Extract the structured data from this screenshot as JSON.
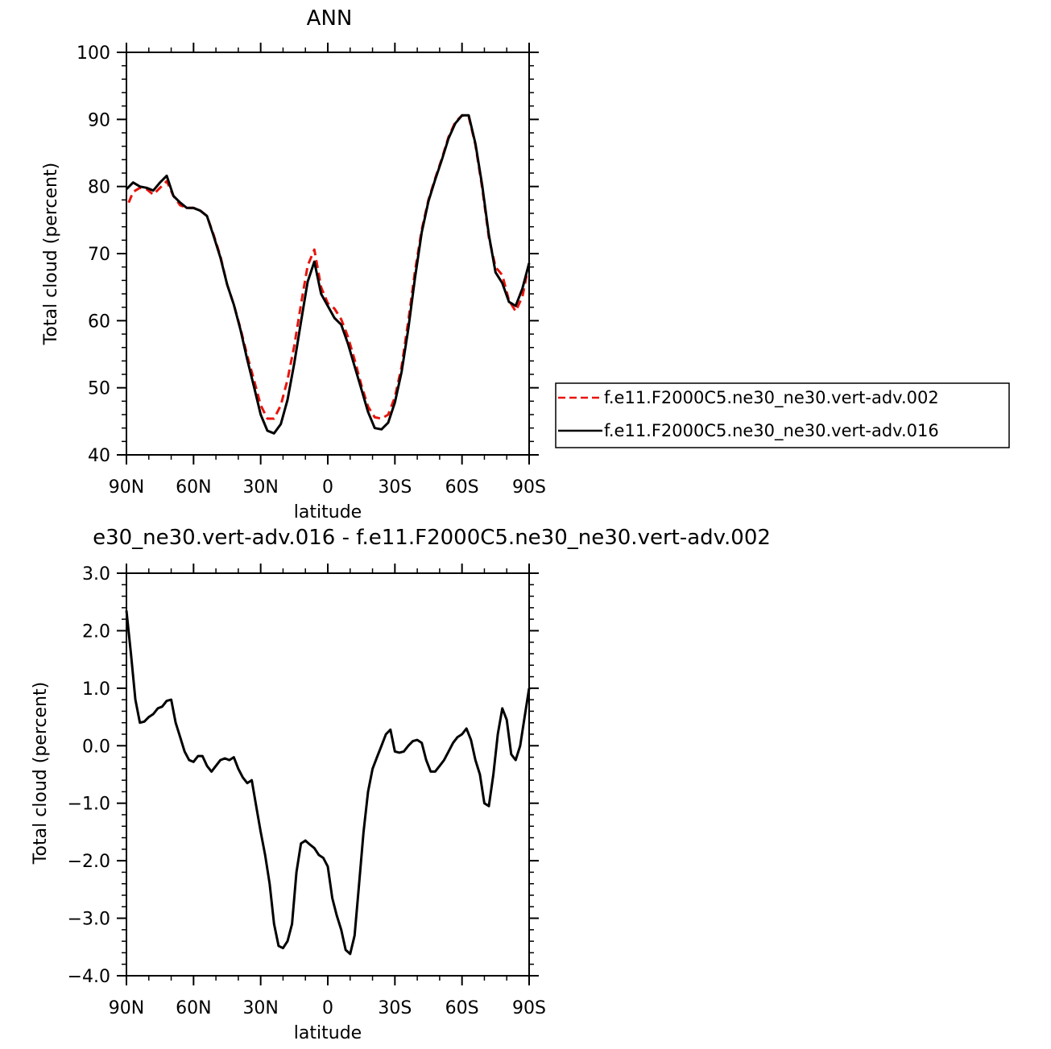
{
  "chart_data": [
    {
      "type": "line",
      "title": "ANN",
      "xlabel": "latitude",
      "ylabel": "Total cloud (percent)",
      "xlim": [
        90,
        -90
      ],
      "ylim": [
        40,
        100
      ],
      "x_ticks": [
        90,
        60,
        30,
        0,
        -30,
        -60,
        -90
      ],
      "x_tick_labels": [
        "90N",
        "60N",
        "30N",
        "0",
        "30S",
        "60S",
        "90S"
      ],
      "y_ticks": [
        40,
        50,
        60,
        70,
        80,
        90,
        100
      ],
      "y_tick_labels": [
        "40",
        "50",
        "60",
        "70",
        "80",
        "90",
        "100"
      ],
      "legend": "right",
      "series": [
        {
          "name": "f.e11.F2000C5.ne30_ne30.vert-adv.002",
          "color": "#e8140c",
          "dash": "dashed",
          "x": [
            89,
            87,
            84,
            81,
            78,
            75,
            72,
            69,
            66,
            63,
            60,
            57,
            54,
            51,
            48,
            45,
            42,
            39,
            36,
            33,
            30,
            27,
            24,
            21,
            18,
            15,
            12,
            9,
            6,
            3,
            0,
            -3,
            -6,
            -9,
            -12,
            -15,
            -18,
            -21,
            -24,
            -27,
            -30,
            -33,
            -36,
            -39,
            -42,
            -45,
            -48,
            -51,
            -54,
            -57,
            -60,
            -63,
            -66,
            -69,
            -72,
            -75,
            -78,
            -81,
            -84,
            -87,
            -90
          ],
          "y": [
            77.6,
            79.2,
            79.8,
            79.6,
            78.8,
            79.8,
            80.8,
            78.6,
            77.2,
            76.8,
            76.8,
            76.4,
            75.6,
            72.8,
            69.6,
            65.4,
            62.4,
            58.8,
            54.8,
            51.2,
            47.4,
            45.4,
            45.4,
            47.4,
            51.2,
            56.2,
            62.4,
            68.2,
            70.6,
            65.0,
            62.6,
            61.8,
            60.2,
            57.6,
            54.2,
            50.4,
            47.2,
            45.6,
            45.4,
            46.0,
            48.6,
            53.2,
            60.0,
            67.4,
            73.6,
            78.0,
            81.2,
            84.2,
            87.4,
            89.6,
            90.6,
            90.4,
            86.2,
            79.8,
            72.4,
            68.0,
            66.8,
            63.0,
            61.4,
            63.6,
            68.6
          ]
        },
        {
          "name": "f.e11.F2000C5.ne30_ne30.vert-adv.016",
          "color": "#000000",
          "dash": "solid",
          "x": [
            90,
            87,
            84,
            81,
            78,
            75,
            72,
            69,
            66,
            63,
            60,
            57,
            54,
            51,
            48,
            45,
            42,
            39,
            36,
            33,
            30,
            27,
            24,
            21,
            18,
            15,
            12,
            9,
            6,
            3,
            0,
            -3,
            -6,
            -9,
            -12,
            -15,
            -18,
            -21,
            -24,
            -27,
            -30,
            -33,
            -36,
            -39,
            -42,
            -45,
            -48,
            -51,
            -54,
            -57,
            -60,
            -63,
            -66,
            -69,
            -72,
            -75,
            -78,
            -81,
            -84,
            -87,
            -90
          ],
          "y": [
            79.6,
            80.6,
            80.0,
            79.8,
            79.4,
            80.6,
            81.6,
            78.6,
            77.6,
            76.8,
            76.8,
            76.4,
            75.6,
            72.6,
            69.4,
            65.4,
            62.4,
            58.6,
            54.2,
            50.2,
            46.0,
            43.6,
            43.2,
            44.6,
            48.2,
            53.6,
            59.8,
            65.8,
            68.8,
            64.0,
            62.2,
            60.4,
            59.4,
            56.6,
            53.2,
            49.8,
            46.4,
            44.0,
            43.8,
            44.8,
            47.8,
            52.4,
            58.8,
            66.4,
            73.2,
            77.8,
            81.0,
            84.0,
            87.2,
            89.4,
            90.6,
            90.6,
            86.4,
            80.2,
            72.8,
            67.2,
            65.6,
            62.8,
            62.2,
            64.8,
            68.6
          ]
        }
      ]
    },
    {
      "type": "line",
      "title": "e30_ne30.vert-adv.016 - f.e11.F2000C5.ne30_ne30.vert-adv.002",
      "xlabel": "latitude",
      "ylabel": "Total cloud (percent)",
      "xlim": [
        90,
        -90
      ],
      "ylim": [
        -4.0,
        3.0
      ],
      "x_ticks": [
        90,
        60,
        30,
        0,
        -30,
        -60,
        -90
      ],
      "x_tick_labels": [
        "90N",
        "60N",
        "30N",
        "0",
        "30S",
        "60S",
        "90S"
      ],
      "y_ticks": [
        -4.0,
        -3.0,
        -2.0,
        -1.0,
        0.0,
        1.0,
        2.0,
        3.0
      ],
      "y_tick_labels": [
        "−4.0",
        "−3.0",
        "−2.0",
        "−1.0",
        "0.0",
        "1.0",
        "2.0",
        "3.0"
      ],
      "series": [
        {
          "color": "#000000",
          "dash": "solid",
          "x": [
            90,
            88,
            86,
            84,
            82,
            80,
            78,
            76,
            74,
            72,
            70,
            68,
            66,
            64,
            62,
            60,
            58,
            56,
            54,
            52,
            50,
            48,
            46,
            44,
            42,
            40,
            38,
            36,
            34,
            32,
            30,
            28,
            26,
            24,
            22,
            20,
            18,
            16,
            14,
            12,
            10,
            8,
            6,
            4,
            2,
            0,
            -2,
            -4,
            -6,
            -8,
            -10,
            -12,
            -14,
            -16,
            -18,
            -20,
            -22,
            -24,
            -26,
            -28,
            -30,
            -32,
            -34,
            -36,
            -38,
            -40,
            -42,
            -44,
            -46,
            -48,
            -50,
            -52,
            -54,
            -56,
            -58,
            -60,
            -62,
            -64,
            -66,
            -68,
            -70,
            -72,
            -74,
            -76,
            -78,
            -80,
            -82,
            -84,
            -86,
            -88,
            -90
          ],
          "y": [
            2.35,
            1.6,
            0.8,
            0.4,
            0.42,
            0.5,
            0.55,
            0.65,
            0.68,
            0.78,
            0.8,
            0.4,
            0.15,
            -0.1,
            -0.25,
            -0.28,
            -0.18,
            -0.18,
            -0.35,
            -0.45,
            -0.35,
            -0.25,
            -0.22,
            -0.25,
            -0.2,
            -0.4,
            -0.55,
            -0.65,
            -0.6,
            -1.05,
            -1.5,
            -1.9,
            -2.4,
            -3.1,
            -3.48,
            -3.52,
            -3.4,
            -3.1,
            -2.2,
            -1.7,
            -1.65,
            -1.72,
            -1.78,
            -1.9,
            -1.95,
            -2.1,
            -2.65,
            -2.95,
            -3.2,
            -3.55,
            -3.62,
            -3.3,
            -2.4,
            -1.5,
            -0.8,
            -0.4,
            -0.2,
            0.0,
            0.2,
            0.28,
            -0.1,
            -0.12,
            -0.1,
            0.0,
            0.08,
            0.1,
            0.05,
            -0.25,
            -0.45,
            -0.45,
            -0.35,
            -0.25,
            -0.1,
            0.05,
            0.15,
            0.2,
            0.3,
            0.1,
            -0.25,
            -0.5,
            -1.0,
            -1.05,
            -0.5,
            0.2,
            0.65,
            0.45,
            -0.15,
            -0.25,
            0.0,
            0.5,
            1.0
          ]
        }
      ]
    }
  ],
  "legend_entries": [
    {
      "label": "f.e11.F2000C5.ne30_ne30.vert-adv.002",
      "color": "#e8140c",
      "dash": "dashed"
    },
    {
      "label": "f.e11.F2000C5.ne30_ne30.vert-adv.016",
      "color": "#000000",
      "dash": "solid"
    }
  ]
}
